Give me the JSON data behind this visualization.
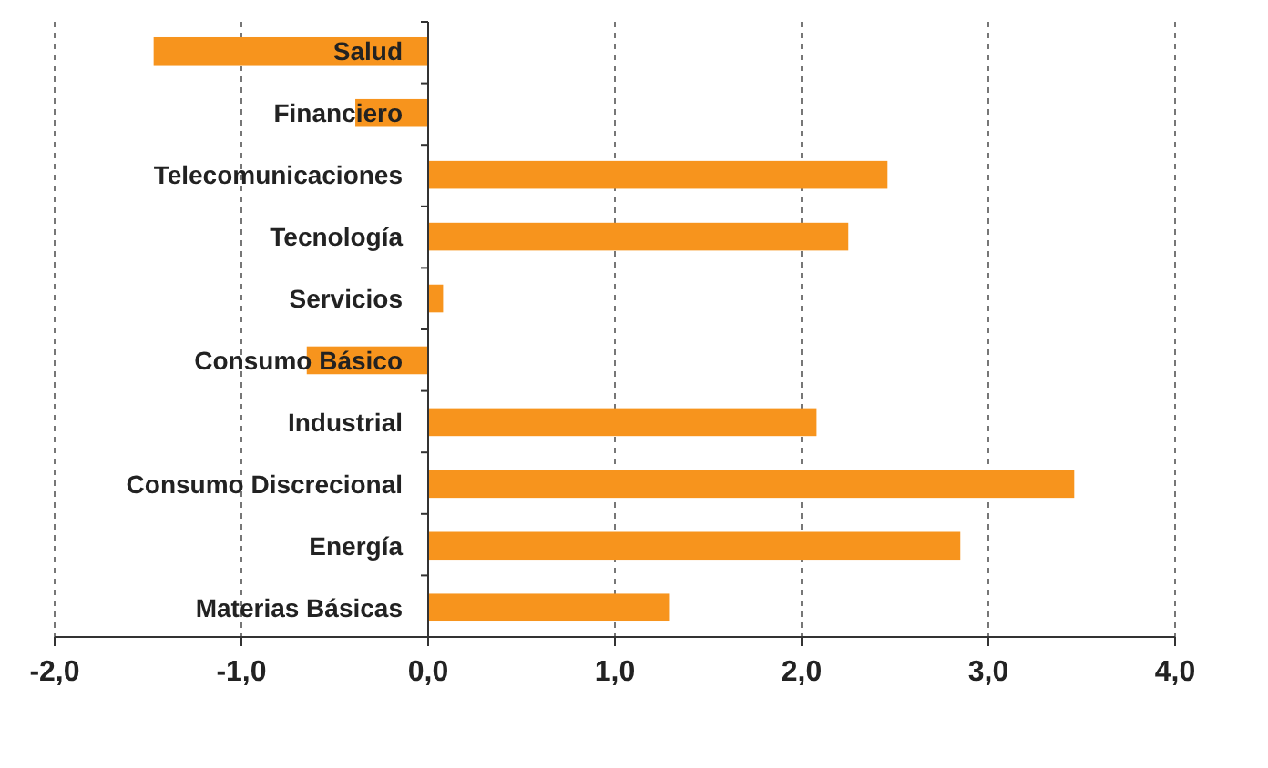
{
  "chart_data": {
    "type": "bar",
    "orientation": "horizontal",
    "categories": [
      "Salud",
      "Financiero",
      "Telecomunicaciones",
      "Tecnología",
      "Servicios",
      "Consumo Básico",
      "Industrial",
      "Consumo Discrecional",
      "Energía",
      "Materias Básicas"
    ],
    "values": [
      -1.47,
      -0.39,
      2.46,
      2.25,
      0.08,
      -0.65,
      2.08,
      3.46,
      2.85,
      1.29
    ],
    "color": "#f7941d",
    "xlim": [
      -2,
      4
    ],
    "xticks": [
      {
        "value": -2,
        "label": "-2,0"
      },
      {
        "value": -1,
        "label": "-1,0"
      },
      {
        "value": 0,
        "label": "0,0"
      },
      {
        "value": 1,
        "label": "1,0"
      },
      {
        "value": 2,
        "label": "2,0"
      },
      {
        "value": 3,
        "label": "3,0"
      },
      {
        "value": 4,
        "label": "4,0"
      }
    ],
    "grid": "x"
  }
}
